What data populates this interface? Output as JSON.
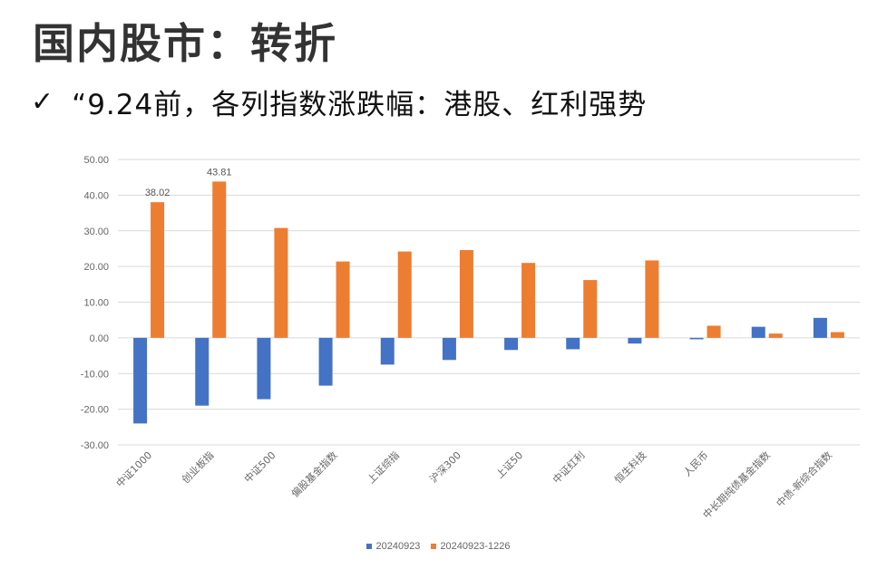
{
  "header": {
    "title": "国内股市：转折",
    "bullet_icon": "checkmark-icon",
    "bullet_glyph": "✓",
    "subtitle": "“9.24前，各列指数涨跌幅：港股、红利强势"
  },
  "chart_data": {
    "type": "bar",
    "title": "",
    "xlabel": "",
    "ylabel": "",
    "ylim": [
      -30,
      50
    ],
    "yticks": [
      "-30.00",
      "-20.00",
      "-10.00",
      "0.00",
      "10.00",
      "20.00",
      "30.00",
      "40.00",
      "50.00"
    ],
    "grid": true,
    "legend_position": "bottom",
    "categories": [
      "中证1000",
      "创业板指",
      "中证500",
      "偏股基金指数",
      "上证综指",
      "沪深300",
      "上证50",
      "中证红利",
      "恒生科技",
      "人民币",
      "中长期纯债基金指数",
      "中债-新综合指数"
    ],
    "series": [
      {
        "name": "20240923",
        "color": "#4472C4",
        "values": [
          -24.0,
          -19.0,
          -17.2,
          -13.4,
          -7.5,
          -6.2,
          -3.4,
          -3.2,
          -1.6,
          -0.4,
          3.1,
          5.6
        ]
      },
      {
        "name": "20240923-1226",
        "color": "#ED7D31",
        "values": [
          38.02,
          43.81,
          30.8,
          21.4,
          24.2,
          24.6,
          21.0,
          16.2,
          21.7,
          3.4,
          1.2,
          1.6
        ]
      }
    ],
    "data_labels": [
      {
        "series": 1,
        "index": 0,
        "text": "38.02"
      },
      {
        "series": 1,
        "index": 1,
        "text": "43.81"
      }
    ]
  }
}
